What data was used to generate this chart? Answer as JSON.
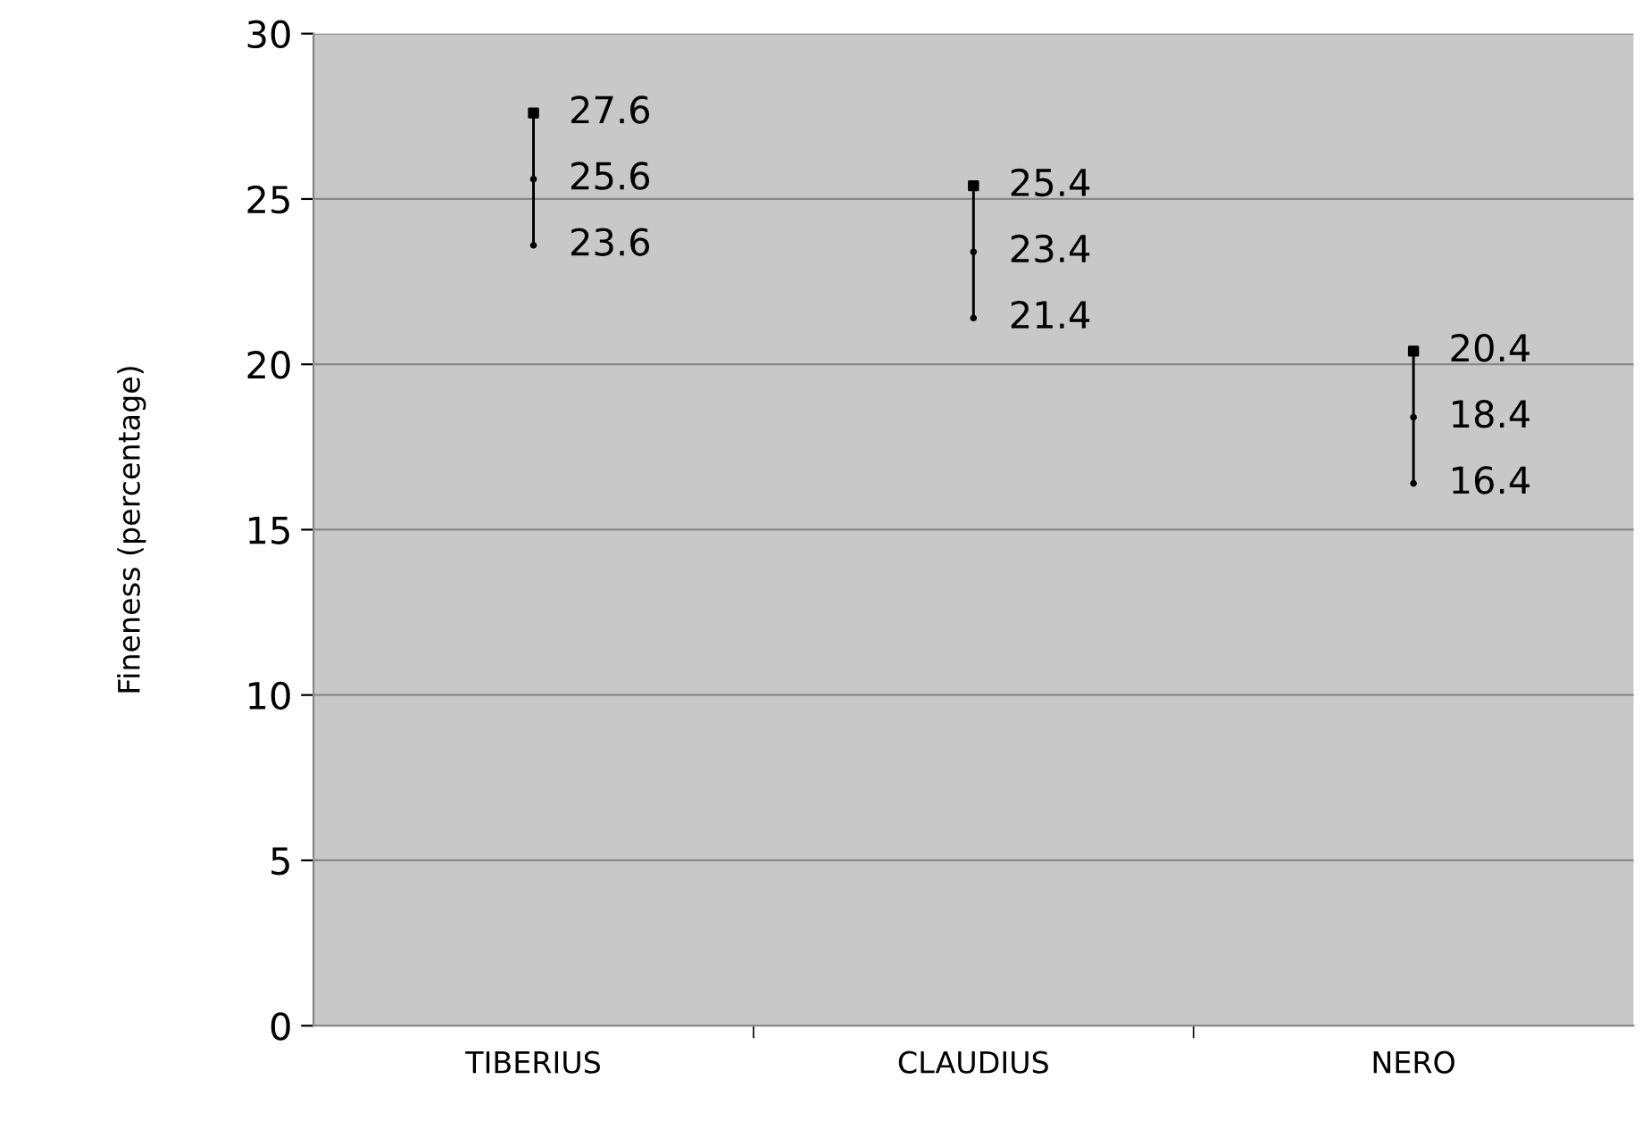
{
  "chart_data": {
    "type": "bar",
    "ylabel": "Fineness (percentage)",
    "categories": [
      "TIBERIUS",
      "CLAUDIUS",
      "NERO"
    ],
    "series": [
      {
        "color": "#000000",
        "base": [
          23.6,
          21.4,
          16.4
        ],
        "values": [
          4,
          4,
          4
        ]
      },
      {
        "type": "scatter",
        "color": "#000000",
        "marker": "square",
        "values": [
          27.6,
          25.4,
          20.4
        ],
        "data_labels": true
      },
      {
        "type": "scatter",
        "color": "#000000",
        "marker": "circle",
        "values": [
          25.6,
          23.4,
          18.4
        ],
        "data_labels": true
      },
      {
        "type": "scatter",
        "color": "#000000",
        "marker": "circle",
        "values": [
          23.6,
          21.4,
          16.4
        ],
        "data_labels": true
      }
    ],
    "ylim": [
      0,
      30
    ],
    "yticks": [
      0,
      5,
      10,
      15,
      20,
      25,
      30
    ],
    "grid": "y",
    "legend": false
  }
}
